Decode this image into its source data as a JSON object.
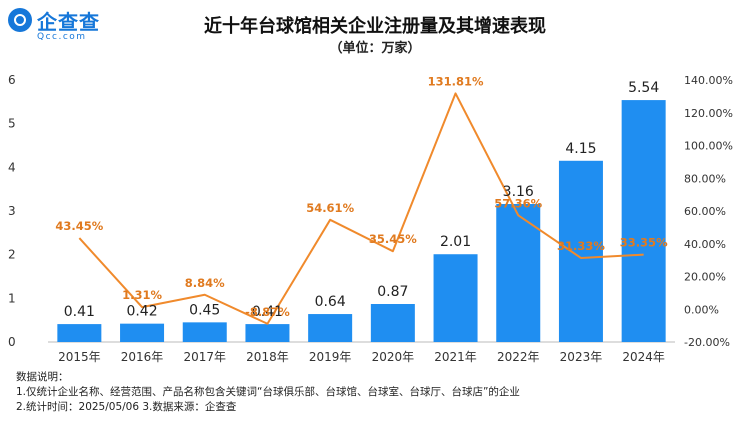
{
  "logo": {
    "name": "企查查",
    "url": "Qcc.com"
  },
  "title": "近十年台球馆相关企业注册量及其增速表现",
  "subtitle": "（单位：万家）",
  "chart_data": {
    "type": "bar",
    "title": "近十年台球馆相关企业注册量及其增速表现",
    "unit": "（单位：万家）",
    "categories": [
      "2015年",
      "2016年",
      "2017年",
      "2018年",
      "2019年",
      "2020年",
      "2021年",
      "2022年",
      "2023年",
      "2024年"
    ],
    "series": [
      {
        "type": "bar",
        "axis": "left",
        "color": "#1f8ef1",
        "values": [
          0.41,
          0.42,
          0.45,
          0.41,
          0.64,
          0.87,
          2.01,
          3.16,
          4.15,
          5.54
        ],
        "labels": [
          "0.41",
          "0.42",
          "0.45",
          "0.41",
          "0.64",
          "0.87",
          "2.01",
          "3.16",
          "4.15",
          "5.54"
        ]
      },
      {
        "type": "line",
        "axis": "right",
        "color": "#f08a2c",
        "values": [
          43.45,
          1.31,
          8.84,
          -8.87,
          54.61,
          35.45,
          131.81,
          57.36,
          31.33,
          33.35
        ],
        "labels": [
          "43.45%",
          "1.31%",
          "8.84%",
          "-8.87%",
          "54.61%",
          "35.45%",
          "131.81%",
          "57.36%",
          "31.33%",
          "33.35%"
        ]
      }
    ],
    "ylim_left": [
      0,
      6
    ],
    "yticks_left": [
      "0",
      "1",
      "2",
      "3",
      "4",
      "5",
      "6"
    ],
    "ylim_right": [
      -20,
      140
    ],
    "yticks_right": [
      "-20.00%",
      "0.00%",
      "20.00%",
      "40.00%",
      "60.00%",
      "80.00%",
      "100.00%",
      "120.00%",
      "140.00%"
    ],
    "grid": false,
    "legend": "none"
  },
  "footnotes": {
    "heading": "数据说明：",
    "note1": "1.仅统计企业名称、经营范围、产品名称包含关键词“台球俱乐部、台球馆、台球室、台球厅、台球店”的企业",
    "note2": "2.统计时间：2025/05/06    3.数据来源：企查查"
  }
}
